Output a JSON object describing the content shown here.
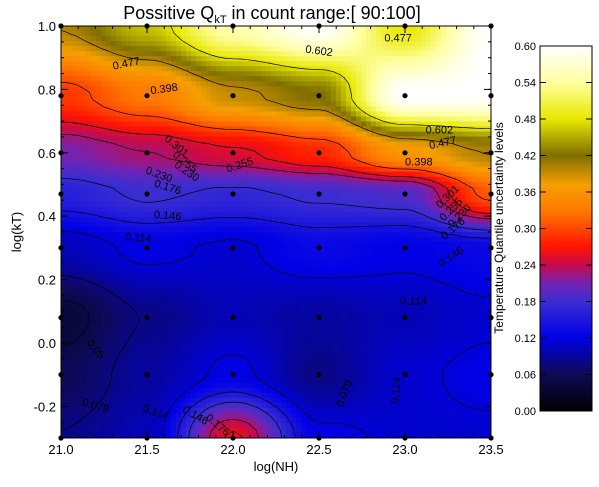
{
  "chart_data": {
    "type": "heatmap",
    "title_prefix": "Possitive Q",
    "title_subscript": "kT",
    "title_suffix": " in count range:[ 90:100]",
    "xlabel": "log(NH)",
    "ylabel": "log(kT)",
    "colorbar_label": "Temperature Quantile uncertainty levels",
    "xlim": [
      21.0,
      23.5
    ],
    "ylim": [
      -0.3,
      1.0
    ],
    "x_ticks": [
      "21.0",
      "21.5",
      "22.0",
      "22.5",
      "23.0",
      "23.5"
    ],
    "x_tick_values": [
      21.0,
      21.5,
      22.0,
      22.5,
      23.0,
      23.5
    ],
    "y_ticks": [
      "-0.2",
      "0.0",
      "0.2",
      "0.4",
      "0.6",
      "0.8",
      "1.0"
    ],
    "y_tick_values": [
      -0.2,
      0.0,
      0.2,
      0.4,
      0.6,
      0.8,
      1.0
    ],
    "colorbar_ticks": [
      "0.00",
      "0.06",
      "0.12",
      "0.18",
      "0.24",
      "0.30",
      "0.36",
      "0.42",
      "0.48",
      "0.54",
      "0.60"
    ],
    "colorbar_tick_values": [
      0.0,
      0.06,
      0.12,
      0.18,
      0.24,
      0.3,
      0.36,
      0.42,
      0.48,
      0.54,
      0.6
    ],
    "colorbar_range": [
      0.0,
      0.6
    ],
    "grid_x": [
      21.0,
      21.5,
      22.0,
      22.5,
      23.0,
      23.5
    ],
    "grid_y": [
      -0.3,
      -0.1,
      0.08,
      0.3,
      0.47,
      0.6,
      0.78,
      1.0
    ],
    "grid_values": [
      [
        0.08,
        0.1,
        0.26,
        0.12,
        0.11,
        0.11
      ],
      [
        0.06,
        0.09,
        0.12,
        0.08,
        0.11,
        0.12
      ],
      [
        0.04,
        0.08,
        0.1,
        0.09,
        0.1,
        0.11
      ],
      [
        0.1,
        0.12,
        0.11,
        0.13,
        0.12,
        0.13
      ],
      [
        0.16,
        0.18,
        0.17,
        0.18,
        0.19,
        0.31
      ],
      [
        0.21,
        0.23,
        0.25,
        0.28,
        0.36,
        0.4
      ],
      [
        0.29,
        0.33,
        0.39,
        0.42,
        0.6,
        0.6
      ],
      [
        0.4,
        0.46,
        0.55,
        0.6,
        0.48,
        0.6
      ]
    ],
    "contour_labels": [
      {
        "text": "0.477",
        "x": 21.38,
        "y": 0.88,
        "angle": -12
      },
      {
        "text": "0.602",
        "x": 22.5,
        "y": 0.92,
        "angle": 8
      },
      {
        "text": "0.477",
        "x": 22.96,
        "y": 0.96,
        "angle": 0
      },
      {
        "text": "0.398",
        "x": 21.6,
        "y": 0.8,
        "angle": -8
      },
      {
        "text": "0.602",
        "x": 23.2,
        "y": 0.67,
        "angle": 0
      },
      {
        "text": "0.477",
        "x": 23.22,
        "y": 0.63,
        "angle": -12
      },
      {
        "text": "0.398",
        "x": 23.08,
        "y": 0.57,
        "angle": 0
      },
      {
        "text": "0.301",
        "x": 21.67,
        "y": 0.62,
        "angle": 40
      },
      {
        "text": "0.255",
        "x": 21.72,
        "y": 0.57,
        "angle": 38
      },
      {
        "text": "0.230",
        "x": 21.73,
        "y": 0.54,
        "angle": 35
      },
      {
        "text": "0.255",
        "x": 22.04,
        "y": 0.56,
        "angle": -18
      },
      {
        "text": "0.230",
        "x": 21.57,
        "y": 0.53,
        "angle": 20
      },
      {
        "text": "0.176",
        "x": 21.62,
        "y": 0.49,
        "angle": 18
      },
      {
        "text": "0.146",
        "x": 21.62,
        "y": 0.4,
        "angle": 5
      },
      {
        "text": "0.114",
        "x": 21.45,
        "y": 0.33,
        "angle": 5
      },
      {
        "text": "0.301",
        "x": 23.25,
        "y": 0.46,
        "angle": -45
      },
      {
        "text": "0.255",
        "x": 23.27,
        "y": 0.42,
        "angle": -45
      },
      {
        "text": "0.230",
        "x": 23.32,
        "y": 0.4,
        "angle": -45
      },
      {
        "text": "0.176",
        "x": 23.28,
        "y": 0.36,
        "angle": -40
      },
      {
        "text": "0.146",
        "x": 23.27,
        "y": 0.27,
        "angle": -35
      },
      {
        "text": "0.114",
        "x": 23.05,
        "y": 0.13,
        "angle": 0
      },
      {
        "text": "0.05",
        "x": 21.2,
        "y": -0.02,
        "angle": 50
      },
      {
        "text": "0.079",
        "x": 22.65,
        "y": -0.16,
        "angle": -70
      },
      {
        "text": "0.114",
        "x": 22.95,
        "y": -0.15,
        "angle": -85
      },
      {
        "text": "0.079",
        "x": 21.2,
        "y": -0.2,
        "angle": 15
      },
      {
        "text": "0.114",
        "x": 21.55,
        "y": -0.22,
        "angle": 20
      },
      {
        "text": "0.146",
        "x": 21.78,
        "y": -0.23,
        "angle": 30
      },
      {
        "text": "0.176",
        "x": 21.91,
        "y": -0.26,
        "angle": 40
      }
    ]
  }
}
